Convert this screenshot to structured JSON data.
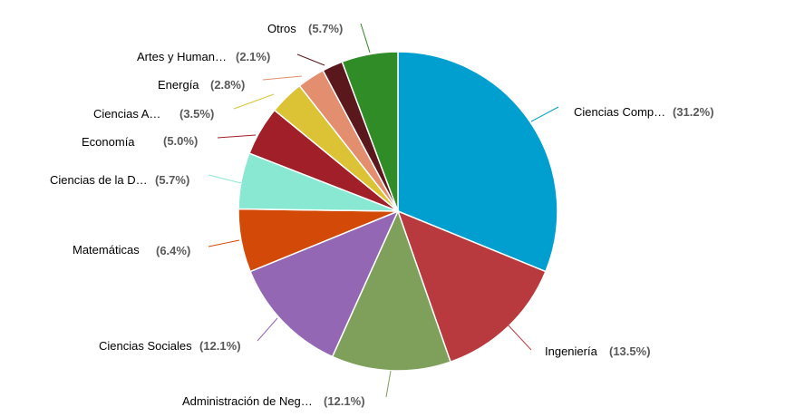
{
  "chart_data": {
    "type": "pie",
    "start_angle_deg": 0,
    "direction": "clockwise",
    "slices": [
      {
        "label": "Ciencias Comp…",
        "pct_text": "(31.2%)",
        "value": 31.2,
        "color": "#009fd0"
      },
      {
        "label": "Ingeniería",
        "pct_text": "(13.5%)",
        "value": 13.5,
        "color": "#b83a3f"
      },
      {
        "label": "Administración de Neg…",
        "pct_text": "(12.1%)",
        "value": 12.1,
        "color": "#7ea05b"
      },
      {
        "label": "Ciencias Sociales",
        "pct_text": "(12.1%)",
        "value": 12.1,
        "color": "#9467b4"
      },
      {
        "label": "Matemáticas",
        "pct_text": "(6.4%)",
        "value": 6.4,
        "color": "#d34a08"
      },
      {
        "label": "Ciencias de la D…",
        "pct_text": "(5.7%)",
        "value": 5.7,
        "color": "#88e8d2"
      },
      {
        "label": "Economía",
        "pct_text": "(5.0%)",
        "value": 5.0,
        "color": "#a11f28"
      },
      {
        "label": "Ciencias A…",
        "pct_text": "(3.5%)",
        "value": 3.5,
        "color": "#dbc335"
      },
      {
        "label": "Energía",
        "pct_text": "(2.8%)",
        "value": 2.8,
        "color": "#e38e6e"
      },
      {
        "label": "Artes y Human…",
        "pct_text": "(2.1%)",
        "value": 2.1,
        "color": "#5a181d"
      },
      {
        "label": "Otros",
        "pct_text": "(5.7%)",
        "value": 5.7,
        "color": "#2f8c27"
      }
    ]
  }
}
